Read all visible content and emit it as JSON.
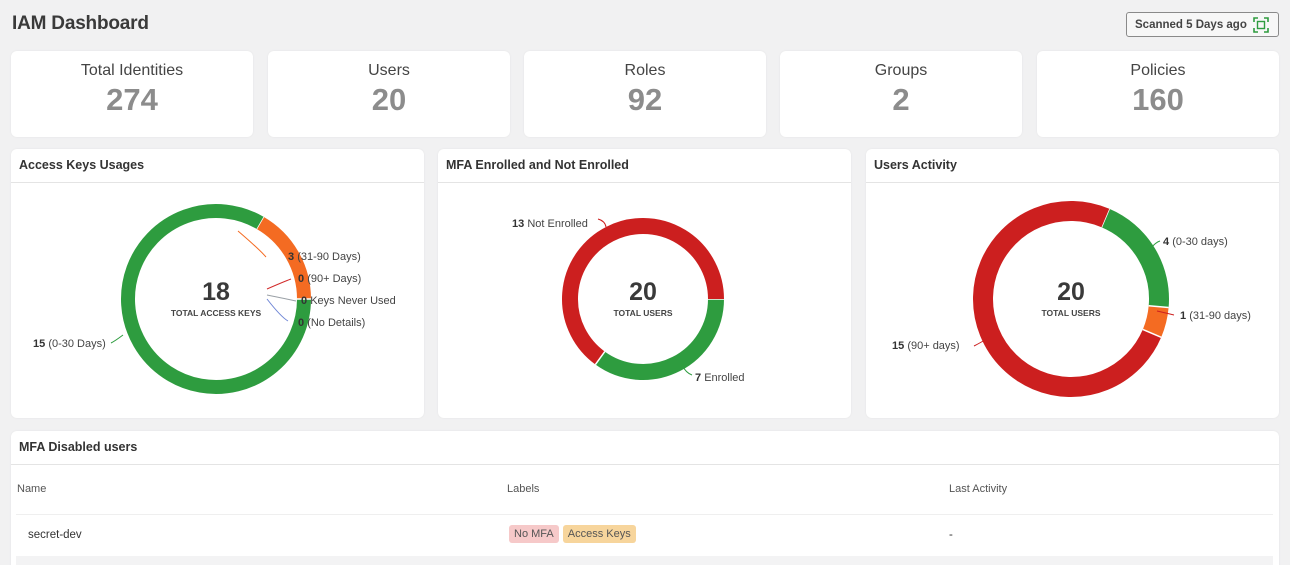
{
  "header": {
    "title": "IAM Dashboard",
    "scan_status": "Scanned 5 Days ago",
    "scan_icon": "scan-icon"
  },
  "stats": [
    {
      "label": "Total Identities",
      "value": "274"
    },
    {
      "label": "Users",
      "value": "20"
    },
    {
      "label": "Roles",
      "value": "92"
    },
    {
      "label": "Groups",
      "value": "2"
    },
    {
      "label": "Policies",
      "value": "160"
    }
  ],
  "access_keys": {
    "title": "Access Keys Usages",
    "total": "18",
    "total_label": "TOTAL ACCESS KEYS",
    "segments": [
      {
        "count": "15",
        "label": "(0-30 Days)",
        "value": 15,
        "color": "#2e9c3f"
      },
      {
        "count": "3",
        "label": "(31-90 Days)",
        "value": 3,
        "color": "#f46b22"
      },
      {
        "count": "0",
        "label": "(90+ Days)",
        "value": 0,
        "color": "#d12a2a"
      },
      {
        "count": "0",
        "label": "Keys Never Used",
        "value": 0,
        "color": "#9aa0a6"
      },
      {
        "count": "0",
        "label": "(No Details)",
        "value": 0,
        "color": "#6f86d6"
      }
    ]
  },
  "mfa": {
    "title": "MFA Enrolled and Not Enrolled",
    "total": "20",
    "total_label": "TOTAL USERS",
    "segments": [
      {
        "count": "7",
        "label": "Enrolled",
        "value": 7,
        "color": "#2e9c3f"
      },
      {
        "count": "13",
        "label": "Not Enrolled",
        "value": 13,
        "color": "#cc1f1f"
      }
    ]
  },
  "activity": {
    "title": "Users Activity",
    "total": "20",
    "total_label": "TOTAL USERS",
    "segments": [
      {
        "count": "4",
        "label": "(0-30 days)",
        "value": 4,
        "color": "#2e9c3f"
      },
      {
        "count": "1",
        "label": "(31-90 days)",
        "value": 1,
        "color": "#f46b22"
      },
      {
        "count": "15",
        "label": "(90+ days)",
        "value": 15,
        "color": "#cc1f1f"
      }
    ]
  },
  "mfa_disabled": {
    "title": "MFA Disabled users",
    "columns": [
      "Name",
      "Labels",
      "Last Activity"
    ],
    "rows": [
      {
        "name": "secret-dev",
        "labels": [
          "No MFA",
          "Access Keys"
        ],
        "last_activity": "-"
      }
    ]
  }
}
